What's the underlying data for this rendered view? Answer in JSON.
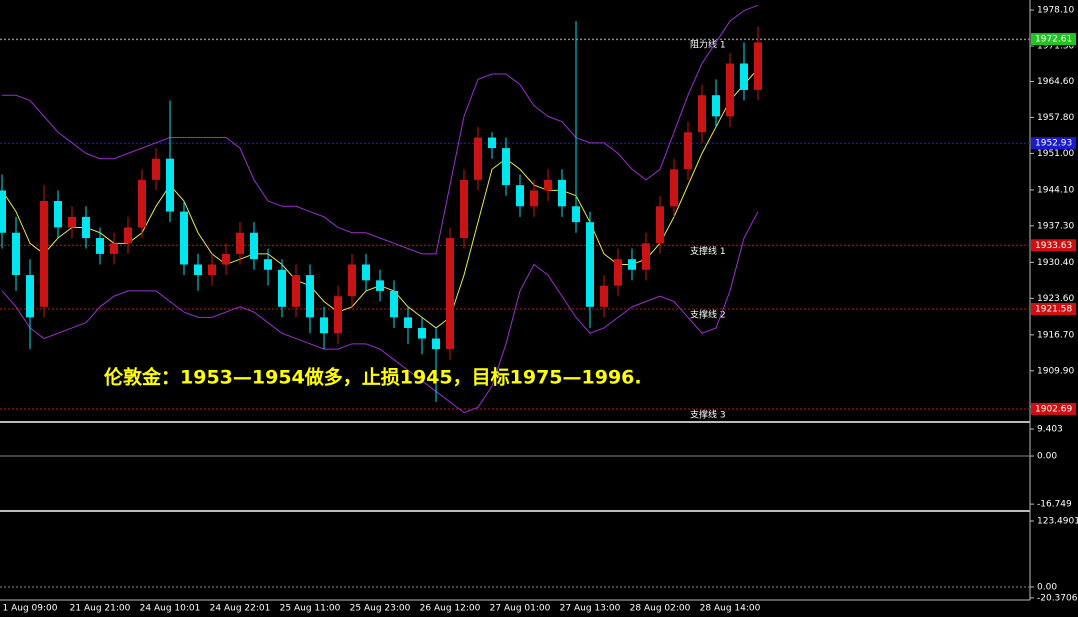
{
  "chart_data": {
    "type": "candlestick",
    "annotation": "伦敦金：1953—1954做多，止损1945，目标1975—1996.",
    "categories": [
      null,
      null,
      "1 Aug 09:00",
      null,
      null,
      null,
      null,
      "21 Aug 21:00",
      null,
      null,
      null,
      null,
      "24 Aug 10:01",
      null,
      null,
      null,
      null,
      "24 Aug 22:01",
      null,
      null,
      null,
      null,
      "25 Aug 11:00",
      null,
      null,
      null,
      null,
      "25 Aug 23:00",
      null,
      null,
      null,
      null,
      "26 Aug 12:00",
      null,
      null,
      null,
      null,
      "27 Aug 01:00",
      null,
      null,
      null,
      null,
      "27 Aug 13:00",
      null,
      null,
      null,
      null,
      "28 Aug 02:00",
      null,
      null,
      null,
      null,
      "28 Aug 14:00",
      null,
      null
    ],
    "open": [
      1944,
      1936,
      1928,
      1922,
      1942,
      1937,
      1939,
      1935,
      1932,
      1934,
      1937,
      1946,
      1950,
      1940,
      1930,
      1928,
      1930,
      1932,
      1936,
      1931,
      1929,
      1922,
      1928,
      1920,
      1917,
      1924,
      1930,
      1927,
      1925,
      1920,
      1918,
      1916,
      1914,
      1935,
      1946,
      1954,
      1952,
      1945,
      1941,
      1944,
      1946,
      1941,
      1938,
      1922,
      1926,
      1931,
      1929,
      1934,
      1941,
      1948,
      1955,
      1962,
      1958,
      1968,
      1963
    ],
    "close": [
      1936,
      1928,
      1920,
      1942,
      1937,
      1939,
      1935,
      1932,
      1934,
      1937,
      1946,
      1950,
      1940,
      1930,
      1928,
      1930,
      1932,
      1936,
      1931,
      1929,
      1922,
      1928,
      1920,
      1917,
      1924,
      1930,
      1927,
      1925,
      1920,
      1918,
      1916,
      1914,
      1935,
      1946,
      1954,
      1952,
      1945,
      1941,
      1944,
      1946,
      1941,
      1938,
      1922,
      1926,
      1931,
      1929,
      1934,
      1941,
      1948,
      1955,
      1962,
      1958,
      1968,
      1963,
      1972
    ],
    "high": [
      1947,
      1939,
      1931,
      1945,
      1944,
      1941,
      1941,
      1937,
      1936,
      1939,
      1948,
      1952,
      1961,
      1942,
      1932,
      1932,
      1934,
      1938,
      1938,
      1933,
      1931,
      1930,
      1930,
      1922,
      1926,
      1932,
      1932,
      1929,
      1927,
      1922,
      1920,
      1918,
      1937,
      1948,
      1956,
      1955,
      1954,
      1947,
      1946,
      1948,
      1948,
      1976,
      1940,
      1928,
      1933,
      1933,
      1936,
      1943,
      1950,
      1957,
      1964,
      1965,
      1970,
      1972,
      1975
    ],
    "low": [
      1933,
      1925,
      1914,
      1920,
      1935,
      1935,
      1933,
      1930,
      1930,
      1932,
      1935,
      1944,
      1938,
      1928,
      1925,
      1926,
      1928,
      1930,
      1929,
      1926,
      1920,
      1920,
      1917,
      1914,
      1915,
      1922,
      1925,
      1923,
      1918,
      1915,
      1913,
      1904,
      1912,
      1933,
      1944,
      1950,
      1943,
      1939,
      1939,
      1942,
      1939,
      1936,
      1918,
      1920,
      1924,
      1927,
      1927,
      1932,
      1939,
      1946,
      1953,
      1956,
      1956,
      1961,
      1961
    ],
    "up_color": "#c81414",
    "down_color": "#00e5ee",
    "series": [
      {
        "name": "upper",
        "color": "#9a2fd0",
        "values": [
          1962,
          1962,
          1961,
          1958,
          1955,
          1953,
          1951,
          1950,
          1950,
          1951,
          1952,
          1953,
          1954,
          1954,
          1954,
          1954,
          1954,
          1952,
          1946,
          1942,
          1941,
          1941,
          1940,
          1939,
          1937,
          1936,
          1936,
          1935,
          1934,
          1933,
          1932,
          1932,
          1945,
          1958,
          1965,
          1966,
          1966,
          1964,
          1960,
          1958,
          1957,
          1954,
          1953,
          1953,
          1951,
          1948,
          1946,
          1948,
          1955,
          1962,
          1968,
          1972,
          1976,
          1978,
          1979
        ]
      },
      {
        "name": "lower",
        "color": "#9a2fd0",
        "values": [
          1925,
          1922,
          1918,
          1916,
          1917,
          1918,
          1919,
          1922,
          1924,
          1925,
          1925,
          1925,
          1923,
          1921,
          1920,
          1920,
          1921,
          1922,
          1921,
          1919,
          1917,
          1916,
          1915,
          1914,
          1914,
          1915,
          1915,
          1914,
          1912,
          1910,
          1908,
          1906,
          1904,
          1902,
          1903,
          1907,
          1915,
          1925,
          1930,
          1928,
          1924,
          1920,
          1917,
          1918,
          1920,
          1922,
          1923,
          1924,
          1923,
          1920,
          1917,
          1918,
          1925,
          1935,
          1940
        ]
      },
      {
        "name": "ma",
        "color": "#e8e840",
        "values": [
          1944,
          1940,
          1934,
          1932,
          1935,
          1937,
          1937,
          1936,
          1934,
          1934,
          1936,
          1941,
          1945,
          1942,
          1936,
          1932,
          1930,
          1931,
          1932,
          1932,
          1930,
          1927,
          1926,
          1923,
          1921,
          1922,
          1925,
          1926,
          1925,
          1922,
          1920,
          1918,
          1920,
          1928,
          1938,
          1948,
          1950,
          1948,
          1945,
          1944,
          1944,
          1943,
          1938,
          1932,
          1930,
          1930,
          1931,
          1934,
          1939,
          1945,
          1951,
          1956,
          1961,
          1964,
          1967
        ]
      }
    ],
    "levels": [
      {
        "value": 1972.5,
        "label": "1972.50",
        "color": "#888888",
        "box": "#000000",
        "name": null
      },
      {
        "value": 1972.61,
        "label": "1972.61",
        "color": "#888888",
        "box": "#22c422",
        "name": "阻力线 1"
      },
      {
        "value": 1952.93,
        "label": "1952.93",
        "color": "#2020e0",
        "box": "#1a1ad0",
        "name": null
      },
      {
        "value": 1933.63,
        "label": "1933.63",
        "color": "#c81414",
        "box": "#d01010",
        "name": "支撑线 1"
      },
      {
        "value": 1921.58,
        "label": "1921.58",
        "color": "#c81414",
        "box": "#d01010",
        "name": "支撑线 2"
      },
      {
        "value": 1902.69,
        "label": "1902.69",
        "color": "#c81414",
        "box": "#d01010",
        "name": "支撑线 3"
      }
    ],
    "ylim": [
      1900.6,
      1980.0
    ],
    "yticks": [
      {
        "value": 1978.1,
        "label": "1978.10"
      },
      {
        "value": 1971.3,
        "label": "1971.30"
      },
      {
        "value": 1964.6,
        "label": "1964.60"
      },
      {
        "value": 1957.8,
        "label": "1957.80"
      },
      {
        "value": 1951,
        "label": "1951.00"
      },
      {
        "value": 1944.1,
        "label": "1944.10"
      },
      {
        "value": 1937.3,
        "label": "1937.30"
      },
      {
        "value": 1930.4,
        "label": "1930.40"
      },
      {
        "value": 1923.6,
        "label": "1923.60"
      },
      {
        "value": 1916.7,
        "label": "1916.70"
      },
      {
        "value": 1909.9,
        "label": "1909.90"
      },
      {
        "value": 1903.1,
        "label": "1903.10"
      }
    ],
    "panel2": {
      "ylim": [
        -18.1,
        11.5
      ],
      "yticks": [
        9.403,
        {
          "value": 0,
          "label": "0.00"
        },
        -16.749
      ]
    },
    "panel3": {
      "ylim": [
        -20.6,
        138.5
      ],
      "yticks": [
        123.4901,
        {
          "value": 0,
          "label": "0.00"
        },
        -20.3706
      ]
    }
  }
}
